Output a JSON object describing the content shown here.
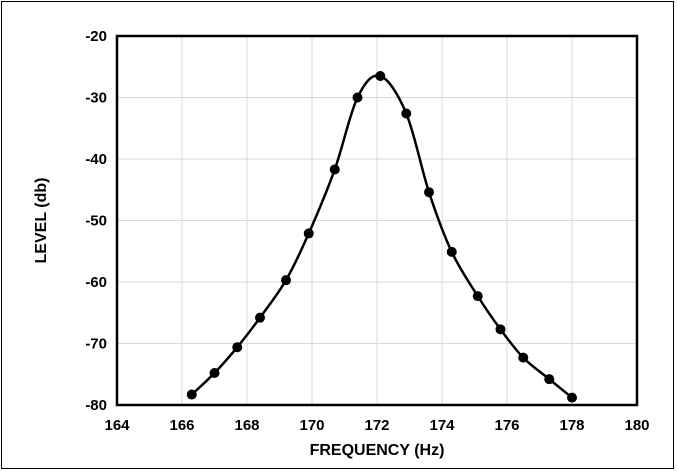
{
  "chart_data": {
    "type": "line",
    "title": "",
    "xlabel": "FREQUENCY (Hz)",
    "ylabel": "LEVEL (db)",
    "xlim": [
      164,
      180
    ],
    "ylim": [
      -80,
      -20
    ],
    "x_ticks": [
      164,
      166,
      168,
      170,
      172,
      174,
      176,
      178,
      180
    ],
    "y_ticks": [
      -20,
      -30,
      -40,
      -50,
      -60,
      -70,
      -80
    ],
    "grid": true,
    "legend": "none",
    "series": [
      {
        "style": "smooth line with circle markers",
        "color": "#000000",
        "x": [
          166.3,
          167.0,
          167.7,
          168.4,
          169.2,
          169.9,
          170.7,
          171.4,
          172.1,
          172.9,
          173.6,
          174.3,
          175.1,
          175.8,
          176.5,
          177.3,
          178.0
        ],
        "y": [
          -78.3,
          -74.8,
          -70.6,
          -65.8,
          -59.7,
          -52.1,
          -41.7,
          -30.0,
          -26.5,
          -32.6,
          -45.4,
          -55.1,
          -62.3,
          -67.7,
          -72.3,
          -75.8,
          -78.8
        ]
      }
    ]
  }
}
